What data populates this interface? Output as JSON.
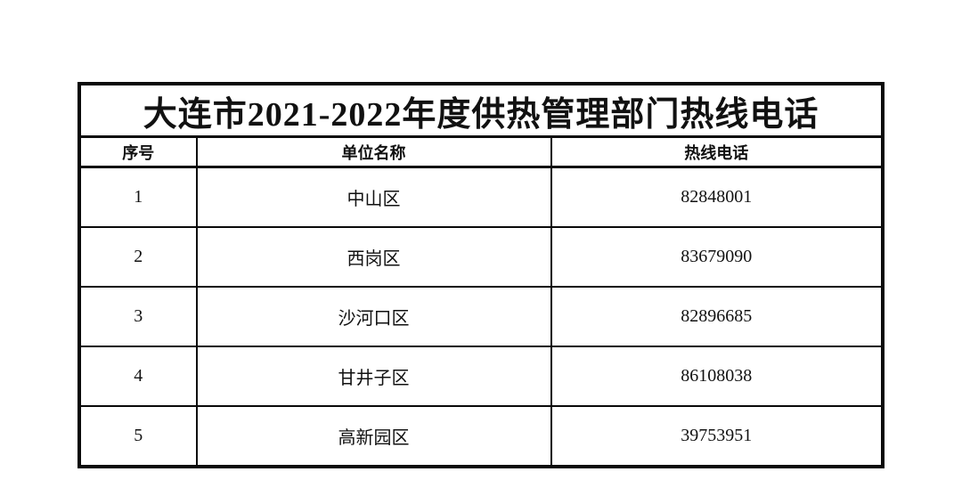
{
  "table": {
    "title": "大连市2021-2022年度供热管理部门热线电话",
    "columns": {
      "seq": "序号",
      "unit": "单位名称",
      "phone": "热线电话"
    },
    "rows": [
      {
        "seq": "1",
        "unit": "中山区",
        "phone": "82848001"
      },
      {
        "seq": "2",
        "unit": "西岗区",
        "phone": "83679090"
      },
      {
        "seq": "3",
        "unit": "沙河口区",
        "phone": "82896685"
      },
      {
        "seq": "4",
        "unit": "甘井子区",
        "phone": "86108038"
      },
      {
        "seq": "5",
        "unit": "高新园区",
        "phone": "39753951"
      }
    ],
    "border_color": "#0a0a0a",
    "background_color": "#ffffff"
  }
}
